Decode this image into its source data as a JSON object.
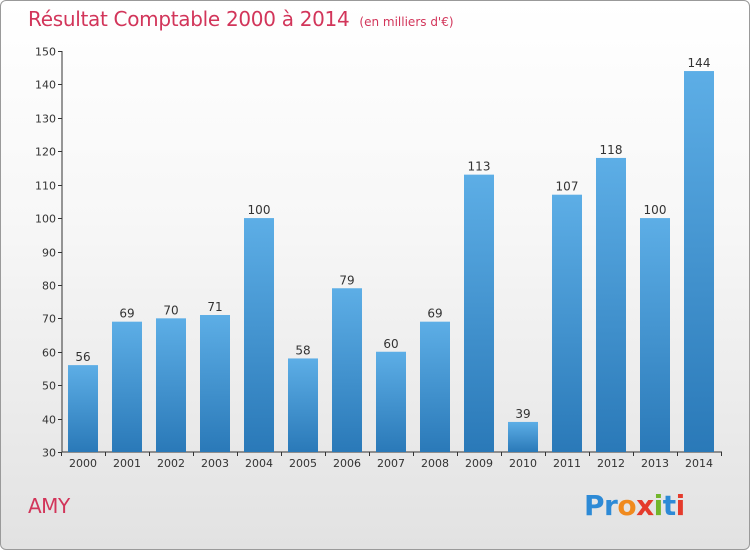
{
  "title": "Résultat Comptable 2000 à 2014",
  "subtitle": "(en milliers d'€)",
  "commune": "AMY",
  "logo": {
    "text": "Proxiti",
    "colors": [
      "#2d8ad6",
      "#2d8ad6",
      "#f08a1e",
      "#e53b2c",
      "#72b62b",
      "#2d8ad6",
      "#e53b2c"
    ]
  },
  "colors": {
    "title": "#d2355a",
    "bar_top": "#5daee6",
    "bar_bottom": "#2a79b8",
    "axis": "#333333"
  },
  "chart_data": {
    "type": "bar",
    "categories": [
      "2000",
      "2001",
      "2002",
      "2003",
      "2004",
      "2005",
      "2006",
      "2007",
      "2008",
      "2009",
      "2010",
      "2011",
      "2012",
      "2013",
      "2014"
    ],
    "values": [
      56,
      69,
      70,
      71,
      100,
      58,
      79,
      60,
      69,
      113,
      39,
      107,
      118,
      100,
      144
    ],
    "ylim": [
      30,
      150
    ],
    "yticks": [
      30,
      40,
      50,
      60,
      70,
      80,
      90,
      100,
      110,
      120,
      130,
      140,
      150
    ],
    "grid": false,
    "legend": "none"
  }
}
